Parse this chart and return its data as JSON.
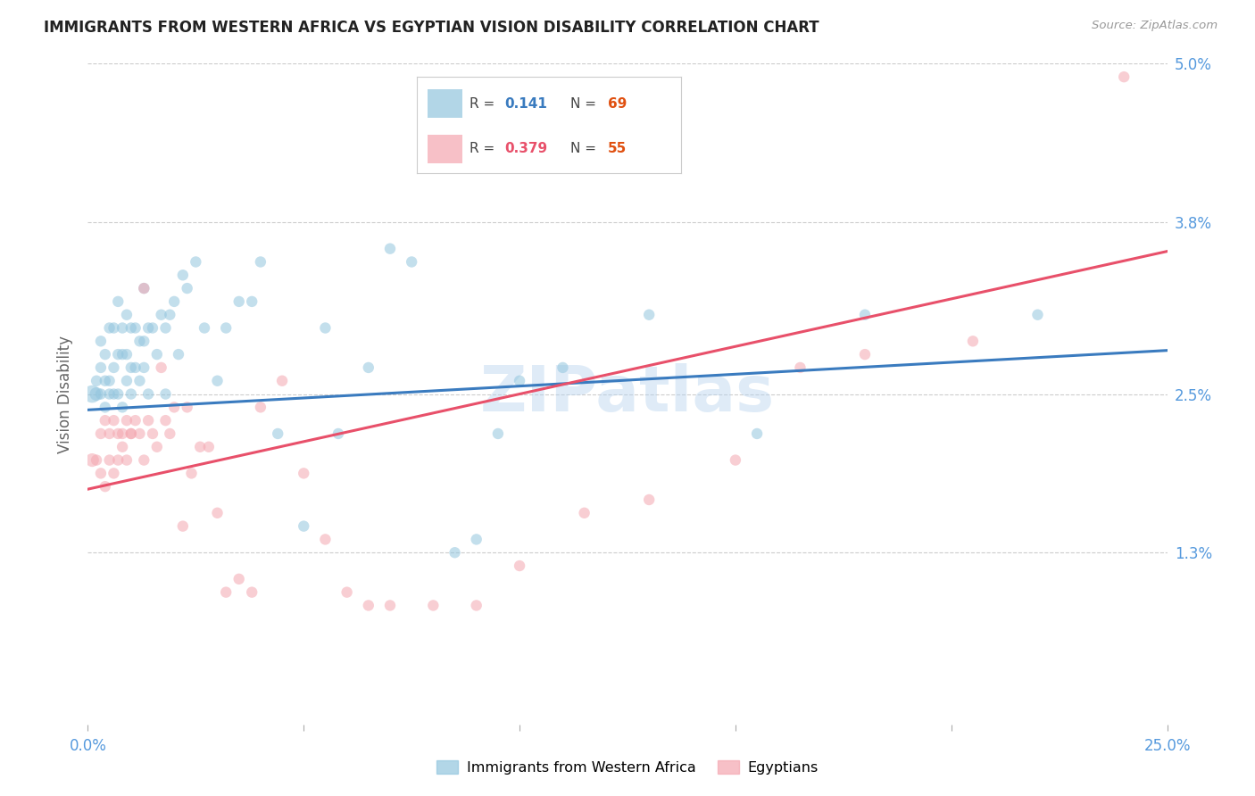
{
  "title": "IMMIGRANTS FROM WESTERN AFRICA VS EGYPTIAN VISION DISABILITY CORRELATION CHART",
  "source": "Source: ZipAtlas.com",
  "ylabel": "Vision Disability",
  "xmin": 0.0,
  "xmax": 0.25,
  "ymin": 0.0,
  "ymax": 0.05,
  "yticks": [
    0.013,
    0.025,
    0.038,
    0.05
  ],
  "ytick_labels": [
    "1.3%",
    "2.5%",
    "3.8%",
    "5.0%"
  ],
  "xticks": [
    0.0,
    0.05,
    0.1,
    0.15,
    0.2,
    0.25
  ],
  "xtick_labels": [
    "0.0%",
    "",
    "",
    "",
    "",
    "25.0%"
  ],
  "watermark": "ZIPatlas",
  "blue_color": "#92c5de",
  "pink_color": "#f4a6b0",
  "blue_line_color": "#3a7bbf",
  "pink_line_color": "#e8506a",
  "axis_label_color": "#5599dd",
  "background_color": "#ffffff",
  "blue_intercept": 0.0238,
  "blue_slope": 0.018,
  "pink_intercept": 0.0178,
  "pink_slope": 0.072,
  "blue_x": [
    0.001,
    0.002,
    0.002,
    0.003,
    0.003,
    0.003,
    0.004,
    0.004,
    0.004,
    0.005,
    0.005,
    0.005,
    0.006,
    0.006,
    0.006,
    0.007,
    0.007,
    0.007,
    0.008,
    0.008,
    0.008,
    0.009,
    0.009,
    0.009,
    0.01,
    0.01,
    0.01,
    0.011,
    0.011,
    0.012,
    0.012,
    0.013,
    0.013,
    0.013,
    0.014,
    0.014,
    0.015,
    0.016,
    0.017,
    0.018,
    0.018,
    0.019,
    0.02,
    0.021,
    0.022,
    0.023,
    0.025,
    0.027,
    0.03,
    0.032,
    0.035,
    0.038,
    0.04,
    0.044,
    0.05,
    0.055,
    0.058,
    0.065,
    0.07,
    0.075,
    0.085,
    0.09,
    0.095,
    0.1,
    0.11,
    0.13,
    0.155,
    0.18,
    0.22
  ],
  "blue_y": [
    0.025,
    0.025,
    0.026,
    0.027,
    0.029,
    0.025,
    0.024,
    0.026,
    0.028,
    0.025,
    0.026,
    0.03,
    0.025,
    0.027,
    0.03,
    0.025,
    0.028,
    0.032,
    0.024,
    0.028,
    0.03,
    0.026,
    0.028,
    0.031,
    0.025,
    0.027,
    0.03,
    0.027,
    0.03,
    0.026,
    0.029,
    0.027,
    0.029,
    0.033,
    0.025,
    0.03,
    0.03,
    0.028,
    0.031,
    0.025,
    0.03,
    0.031,
    0.032,
    0.028,
    0.034,
    0.033,
    0.035,
    0.03,
    0.026,
    0.03,
    0.032,
    0.032,
    0.035,
    0.022,
    0.015,
    0.03,
    0.022,
    0.027,
    0.036,
    0.035,
    0.013,
    0.014,
    0.022,
    0.026,
    0.027,
    0.031,
    0.022,
    0.031,
    0.031
  ],
  "blue_sizes": [
    200,
    120,
    80,
    80,
    80,
    80,
    80,
    80,
    80,
    80,
    80,
    80,
    80,
    80,
    80,
    80,
    80,
    80,
    80,
    80,
    80,
    80,
    80,
    80,
    80,
    80,
    80,
    80,
    80,
    80,
    80,
    80,
    80,
    80,
    80,
    80,
    80,
    80,
    80,
    80,
    80,
    80,
    80,
    80,
    80,
    80,
    80,
    80,
    80,
    80,
    80,
    80,
    80,
    80,
    80,
    80,
    80,
    80,
    80,
    80,
    80,
    80,
    80,
    80,
    80,
    80,
    80,
    80,
    80
  ],
  "pink_x": [
    0.001,
    0.002,
    0.003,
    0.003,
    0.004,
    0.004,
    0.005,
    0.005,
    0.006,
    0.006,
    0.007,
    0.007,
    0.008,
    0.008,
    0.009,
    0.009,
    0.01,
    0.01,
    0.011,
    0.012,
    0.013,
    0.013,
    0.014,
    0.015,
    0.016,
    0.017,
    0.018,
    0.019,
    0.02,
    0.022,
    0.023,
    0.024,
    0.026,
    0.028,
    0.03,
    0.032,
    0.035,
    0.038,
    0.04,
    0.045,
    0.05,
    0.055,
    0.06,
    0.065,
    0.07,
    0.08,
    0.09,
    0.1,
    0.115,
    0.13,
    0.15,
    0.165,
    0.18,
    0.205,
    0.24
  ],
  "pink_y": [
    0.02,
    0.02,
    0.022,
    0.019,
    0.023,
    0.018,
    0.022,
    0.02,
    0.023,
    0.019,
    0.022,
    0.02,
    0.022,
    0.021,
    0.023,
    0.02,
    0.022,
    0.022,
    0.023,
    0.022,
    0.033,
    0.02,
    0.023,
    0.022,
    0.021,
    0.027,
    0.023,
    0.022,
    0.024,
    0.015,
    0.024,
    0.019,
    0.021,
    0.021,
    0.016,
    0.01,
    0.011,
    0.01,
    0.024,
    0.026,
    0.019,
    0.014,
    0.01,
    0.009,
    0.009,
    0.009,
    0.009,
    0.012,
    0.016,
    0.017,
    0.02,
    0.027,
    0.028,
    0.029,
    0.049
  ],
  "pink_sizes": [
    120,
    80,
    80,
    80,
    80,
    80,
    80,
    80,
    80,
    80,
    80,
    80,
    80,
    80,
    80,
    80,
    80,
    80,
    80,
    80,
    80,
    80,
    80,
    80,
    80,
    80,
    80,
    80,
    80,
    80,
    80,
    80,
    80,
    80,
    80,
    80,
    80,
    80,
    80,
    80,
    80,
    80,
    80,
    80,
    80,
    80,
    80,
    80,
    80,
    80,
    80,
    80,
    80,
    80,
    80
  ]
}
